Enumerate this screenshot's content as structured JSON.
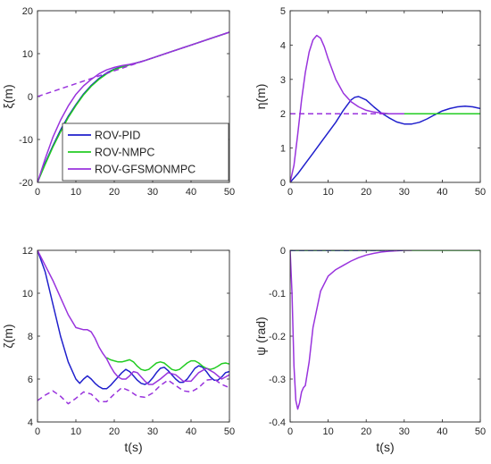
{
  "colors": {
    "pid": "#1f1fcc",
    "nmpc": "#22cc22",
    "gfs": "#9933dd",
    "reference": "#9933dd"
  },
  "legend": {
    "location": "lower-right",
    "entries": [
      {
        "label": "ROV-PID",
        "color": "#1f1fcc"
      },
      {
        "label": "ROV-NMPC",
        "color": "#22cc22"
      },
      {
        "label": "ROV-GFSMONMPC",
        "color": "#9933dd"
      }
    ]
  },
  "chart_data": [
    {
      "type": "line",
      "ylabel": "ξ(m)",
      "xlabel": "",
      "xlim": [
        0,
        50
      ],
      "ylim": [
        -20,
        20
      ],
      "xticks": [
        "0",
        "10",
        "20",
        "30",
        "40",
        "50"
      ],
      "yticks": [
        "-20",
        "-10",
        "0",
        "10",
        "20"
      ],
      "grid": false,
      "series": [
        {
          "name": "ROV-PID",
          "color": "#1f1fcc",
          "x": [
            0,
            2,
            4,
            6,
            8,
            10,
            12,
            14,
            16,
            18,
            20,
            22,
            24,
            26,
            28,
            30,
            35,
            40,
            45,
            50
          ],
          "y": [
            -20,
            -15.5,
            -11.5,
            -7.8,
            -4.6,
            -1.9,
            0.6,
            2.6,
            4.2,
            5.5,
            6.4,
            7.0,
            7.4,
            7.9,
            8.4,
            9.0,
            10.5,
            12.0,
            13.5,
            15.0
          ]
        },
        {
          "name": "ROV-NMPC",
          "color": "#22cc22",
          "x": [
            0,
            2,
            4,
            6,
            8,
            10,
            12,
            14,
            16,
            18,
            20,
            22,
            24,
            26,
            28,
            30,
            35,
            40,
            45,
            50
          ],
          "y": [
            -20,
            -15.8,
            -11.8,
            -8.2,
            -4.9,
            -2.1,
            0.4,
            2.4,
            4.0,
            5.3,
            6.3,
            6.9,
            7.4,
            7.9,
            8.4,
            9.0,
            10.5,
            12.0,
            13.5,
            15.0
          ]
        },
        {
          "name": "ROV-GFSMONMPC",
          "color": "#9933dd",
          "x": [
            0,
            2,
            4,
            6,
            8,
            10,
            12,
            14,
            16,
            18,
            20,
            22,
            24,
            26,
            28,
            30,
            35,
            40,
            45,
            50
          ],
          "y": [
            -20,
            -14.5,
            -9.5,
            -5.5,
            -2.2,
            0.5,
            2.5,
            4.0,
            5.3,
            6.2,
            6.8,
            7.2,
            7.5,
            7.9,
            8.4,
            9.0,
            10.5,
            12.0,
            13.5,
            15.0
          ]
        },
        {
          "name": "",
          "dashed": true,
          "color": "#9933dd",
          "x": [
            0,
            5,
            10,
            15,
            20,
            25,
            30,
            35,
            40,
            45,
            50
          ],
          "y": [
            0,
            1.5,
            3.0,
            4.5,
            6.0,
            7.5,
            9.0,
            10.5,
            12.0,
            13.5,
            15.0
          ]
        }
      ]
    },
    {
      "type": "line",
      "ylabel": "η(m)",
      "xlabel": "",
      "xlim": [
        0,
        50
      ],
      "ylim": [
        0,
        5
      ],
      "xticks": [
        "0",
        "10",
        "20",
        "30",
        "40",
        "50"
      ],
      "yticks": [
        "0",
        "1",
        "2",
        "3",
        "4",
        "5"
      ],
      "grid": false,
      "series": [
        {
          "name": "ROV-PID",
          "color": "#1f1fcc",
          "x": [
            0,
            2,
            4,
            6,
            8,
            10,
            12,
            14,
            16,
            17,
            18,
            20,
            22,
            24,
            26,
            28,
            30,
            32,
            34,
            36,
            38,
            40,
            42,
            44,
            46,
            48,
            50
          ],
          "y": [
            0,
            0.25,
            0.55,
            0.85,
            1.15,
            1.45,
            1.75,
            2.1,
            2.4,
            2.48,
            2.5,
            2.4,
            2.2,
            2.02,
            1.88,
            1.76,
            1.7,
            1.7,
            1.75,
            1.85,
            1.97,
            2.08,
            2.15,
            2.2,
            2.22,
            2.2,
            2.15
          ]
        },
        {
          "name": "ROV-NMPC",
          "color": "#22cc22",
          "x": [
            24,
            30,
            40,
            50
          ],
          "y": [
            2.0,
            2.0,
            2.0,
            2.0
          ]
        },
        {
          "name": "ROV-GFSMONMPC",
          "color": "#9933dd",
          "x": [
            0,
            1,
            2,
            3,
            4,
            5,
            6,
            7,
            8,
            9,
            10,
            12,
            14,
            16,
            18,
            20,
            22,
            24,
            26,
            30
          ],
          "y": [
            0,
            0.5,
            1.4,
            2.4,
            3.2,
            3.8,
            4.15,
            4.28,
            4.2,
            3.95,
            3.6,
            3.0,
            2.6,
            2.35,
            2.2,
            2.1,
            2.05,
            2.02,
            2.0,
            2.0
          ]
        },
        {
          "name": "",
          "dashed": true,
          "color": "#9933dd",
          "x": [
            0,
            25
          ],
          "y": [
            2,
            2
          ]
        }
      ]
    },
    {
      "type": "line",
      "ylabel": "ζ(m)",
      "xlabel": "t(s)",
      "xlim": [
        0,
        50
      ],
      "ylim": [
        4,
        12
      ],
      "xticks": [
        "0",
        "10",
        "20",
        "30",
        "40",
        "50"
      ],
      "yticks": [
        "4",
        "6",
        "8",
        "10",
        "12"
      ],
      "grid": false,
      "series": [
        {
          "name": "ROV-PID",
          "color": "#1f1fcc",
          "x": [
            0,
            2,
            4,
            6,
            8,
            10,
            11,
            12,
            13,
            14,
            15,
            16,
            17,
            18,
            19,
            20,
            21,
            22,
            23,
            24,
            25,
            26,
            27,
            28,
            29,
            30,
            31,
            32,
            33,
            34,
            35,
            36,
            37,
            38,
            39,
            40,
            41,
            42,
            43,
            44,
            45,
            46,
            47,
            48,
            49,
            50
          ],
          "y": [
            12,
            11.0,
            9.5,
            8.0,
            6.8,
            6.0,
            5.8,
            6.0,
            6.15,
            6.0,
            5.8,
            5.65,
            5.55,
            5.55,
            5.7,
            5.9,
            6.1,
            6.3,
            6.45,
            6.35,
            6.15,
            5.95,
            5.8,
            5.75,
            5.85,
            6.05,
            6.3,
            6.5,
            6.55,
            6.4,
            6.2,
            6.0,
            5.85,
            5.85,
            6.0,
            6.25,
            6.5,
            6.62,
            6.55,
            6.35,
            6.1,
            5.95,
            5.95,
            6.1,
            6.3,
            6.35
          ]
        },
        {
          "name": "ROV-NMPC",
          "color": "#22cc22",
          "x": [
            18,
            19,
            20,
            21,
            22,
            23,
            24,
            25,
            26,
            27,
            28,
            29,
            30,
            31,
            32,
            33,
            34,
            35,
            36,
            37,
            38,
            39,
            40,
            41,
            42,
            43,
            44,
            45,
            46,
            47,
            48,
            49,
            50
          ],
          "y": [
            7.0,
            6.9,
            6.85,
            6.8,
            6.8,
            6.85,
            6.9,
            6.8,
            6.6,
            6.45,
            6.4,
            6.45,
            6.6,
            6.75,
            6.8,
            6.75,
            6.6,
            6.45,
            6.4,
            6.45,
            6.6,
            6.75,
            6.85,
            6.85,
            6.75,
            6.6,
            6.5,
            6.45,
            6.5,
            6.6,
            6.72,
            6.75,
            6.7
          ]
        },
        {
          "name": "ROV-GFSMONMPC",
          "color": "#9933dd",
          "x": [
            0,
            2,
            4,
            6,
            8,
            10,
            12,
            13,
            14,
            15,
            16,
            17,
            18,
            19,
            20,
            21,
            22,
            23,
            24,
            25,
            26,
            27,
            28,
            29,
            30,
            32,
            34,
            36,
            38,
            40,
            42,
            44,
            46,
            48,
            50
          ],
          "y": [
            12,
            11.3,
            10.6,
            9.8,
            9.0,
            8.4,
            8.3,
            8.3,
            8.2,
            7.9,
            7.5,
            7.2,
            6.95,
            6.6,
            6.3,
            6.1,
            6.0,
            6.0,
            6.15,
            6.35,
            6.3,
            6.1,
            5.9,
            5.75,
            5.75,
            6.0,
            6.3,
            6.2,
            5.9,
            5.9,
            6.3,
            6.5,
            6.3,
            6.0,
            6.2
          ]
        },
        {
          "name": "",
          "dashed": true,
          "color": "#9933dd",
          "x": [
            0,
            2,
            4,
            6,
            8,
            10,
            12,
            14,
            16,
            18,
            20,
            22,
            24,
            26,
            28,
            30,
            32,
            34,
            36,
            38,
            40,
            42,
            44,
            46,
            48,
            50
          ],
          "y": [
            5.0,
            5.25,
            5.45,
            5.2,
            4.85,
            5.1,
            5.4,
            5.3,
            4.95,
            4.95,
            5.3,
            5.6,
            5.45,
            5.2,
            5.15,
            5.35,
            5.7,
            5.95,
            5.7,
            5.45,
            5.4,
            5.6,
            5.95,
            6.0,
            5.75,
            5.6
          ]
        }
      ]
    },
    {
      "type": "line",
      "ylabel": "ψ (rad)",
      "xlabel": "t(s)",
      "xlim": [
        0,
        50
      ],
      "ylim": [
        -0.4,
        0
      ],
      "xticks": [
        "0",
        "10",
        "20",
        "30",
        "40",
        "50"
      ],
      "yticks": [
        "-0.4",
        "-0.3",
        "-0.2",
        "-0.1",
        "0"
      ],
      "grid": false,
      "series": [
        {
          "name": "ROV-PID",
          "color": "#1f1fcc",
          "x": [
            0,
            24
          ],
          "y": [
            0,
            0
          ]
        },
        {
          "name": "ROV-NMPC",
          "color": "#22cc22",
          "x": [
            0,
            50
          ],
          "y": [
            0,
            0
          ]
        },
        {
          "name": "ROV-GFSMONMPC",
          "color": "#9933dd",
          "x": [
            0,
            0.5,
            1,
            1.5,
            2,
            2.5,
            3,
            3.5,
            4,
            5,
            6,
            8,
            10,
            12,
            14,
            16,
            18,
            20,
            22,
            24,
            26,
            28,
            30,
            32
          ],
          "y": [
            0,
            -0.1,
            -0.27,
            -0.35,
            -0.37,
            -0.355,
            -0.33,
            -0.32,
            -0.315,
            -0.26,
            -0.18,
            -0.095,
            -0.06,
            -0.045,
            -0.035,
            -0.025,
            -0.017,
            -0.011,
            -0.007,
            -0.004,
            -0.002,
            -0.001,
            0,
            0
          ]
        },
        {
          "name": "",
          "dashed": true,
          "color": "#1f1fcc",
          "x": [
            0,
            30
          ],
          "y": [
            0,
            0
          ]
        }
      ]
    }
  ]
}
